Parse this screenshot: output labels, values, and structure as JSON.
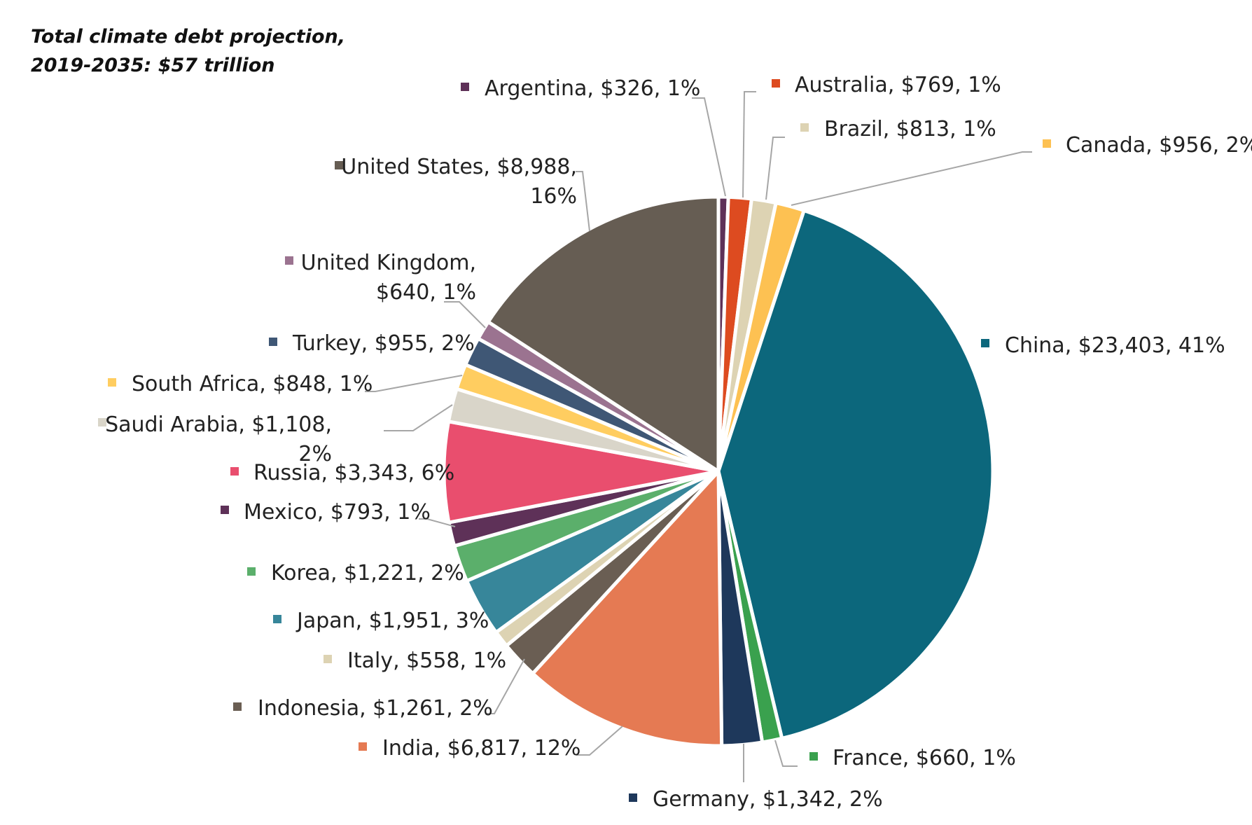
{
  "chart_data": {
    "type": "pie",
    "title_lines": [
      "Total climate debt projection,",
      "2019-2035: $57 trillion"
    ],
    "start_angle_deg": 0,
    "direction": "clockwise",
    "slices": [
      {
        "name": "Argentina",
        "value": 326,
        "display_value": "$326",
        "percent": "1%",
        "color": "#5E3158",
        "label_lines": [
          "Argentina, $326, 1%"
        ]
      },
      {
        "name": "Australia",
        "value": 769,
        "display_value": "$769",
        "percent": "1%",
        "color": "#DD4B20",
        "label_lines": [
          "Australia, $769, 1%"
        ]
      },
      {
        "name": "Brazil",
        "value": 813,
        "display_value": "$813",
        "percent": "1%",
        "color": "#DDD3B3",
        "label_lines": [
          "Brazil, $813, 1%"
        ]
      },
      {
        "name": "Canada",
        "value": 956,
        "display_value": "$956",
        "percent": "2%",
        "color": "#FDC152",
        "label_lines": [
          "Canada, $956, 2%"
        ]
      },
      {
        "name": "China",
        "value": 23403,
        "display_value": "$23,403",
        "percent": "41%",
        "color": "#0C677C",
        "label_lines": [
          "China, $23,403, 41%"
        ]
      },
      {
        "name": "France",
        "value": 660,
        "display_value": "$660",
        "percent": "1%",
        "color": "#3AA14E",
        "label_lines": [
          "France, $660, 1%"
        ]
      },
      {
        "name": "Germany",
        "value": 1342,
        "display_value": "$1,342",
        "percent": "2%",
        "color": "#1E385B",
        "label_lines": [
          "Germany, $1,342, 2%"
        ]
      },
      {
        "name": "India",
        "value": 6817,
        "display_value": "$6,817",
        "percent": "12%",
        "color": "#E57A53",
        "label_lines": [
          "India, $6,817, 12%"
        ]
      },
      {
        "name": "Indonesia",
        "value": 1261,
        "display_value": "$1,261",
        "percent": "2%",
        "color": "#6A5E53",
        "label_lines": [
          "Indonesia, $1,261, 2%"
        ]
      },
      {
        "name": "Italy",
        "value": 558,
        "display_value": "$558",
        "percent": "1%",
        "color": "#DDD3B3",
        "label_lines": [
          "Italy, $558, 1%"
        ]
      },
      {
        "name": "Japan",
        "value": 1951,
        "display_value": "$1,951",
        "percent": "3%",
        "color": "#37869A",
        "label_lines": [
          "Japan, $1,951, 3%"
        ]
      },
      {
        "name": "Korea",
        "value": 1221,
        "display_value": "$1,221",
        "percent": "2%",
        "color": "#5BAF6B",
        "label_lines": [
          "Korea, $1,221, 2%"
        ]
      },
      {
        "name": "Mexico",
        "value": 793,
        "display_value": "$793",
        "percent": "1%",
        "color": "#5E3158",
        "label_lines": [
          "Mexico, $793, 1%"
        ]
      },
      {
        "name": "Russia",
        "value": 3343,
        "display_value": "$3,343",
        "percent": "6%",
        "color": "#E94E6E",
        "label_lines": [
          "Russia, $3,343, 6%"
        ]
      },
      {
        "name": "Saudi Arabia",
        "value": 1108,
        "display_value": "$1,108",
        "percent": "2%",
        "color": "#D9D5C9",
        "label_lines": [
          "Saudi Arabia, $1,108,",
          "2%"
        ]
      },
      {
        "name": "South Africa",
        "value": 848,
        "display_value": "$848",
        "percent": "1%",
        "color": "#FFCD60",
        "label_lines": [
          "South Africa, $848, 1%"
        ]
      },
      {
        "name": "Turkey",
        "value": 955,
        "display_value": "$955",
        "percent": "2%",
        "color": "#3F5775",
        "label_lines": [
          "Turkey, $955, 2%"
        ]
      },
      {
        "name": "United Kingdom",
        "value": 640,
        "display_value": "$640",
        "percent": "1%",
        "color": "#9B7390",
        "label_lines": [
          "United Kingdom,",
          "$640, 1%"
        ]
      },
      {
        "name": "United States",
        "value": 8988,
        "display_value": "$8,988",
        "percent": "16%",
        "color": "#665D53",
        "label_lines": [
          "United States, $8,988,",
          "16%"
        ]
      }
    ]
  }
}
